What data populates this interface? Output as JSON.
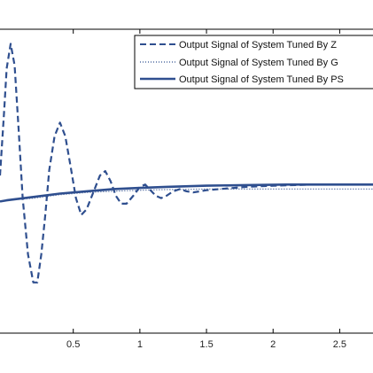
{
  "chart_data": {
    "type": "line",
    "xlim": [
      -0.05,
      2.75
    ],
    "ylim": [
      -1.2,
      1.5
    ],
    "grid": false,
    "legend_position": "top-right",
    "x_ticks": [
      0.5,
      1,
      1.5,
      2,
      2.5
    ],
    "x_tick_labels": [
      "0.5",
      "1",
      "1.5",
      "2",
      "2.5"
    ],
    "series": [
      {
        "name": "Output Signal of System Tuned By Z",
        "style": "dashed",
        "color": "#2f4f8f",
        "x": [
          -0.05,
          -0.02,
          0.0,
          0.03,
          0.06,
          0.09,
          0.12,
          0.16,
          0.2,
          0.23,
          0.26,
          0.29,
          0.32,
          0.36,
          0.4,
          0.44,
          0.48,
          0.52,
          0.56,
          0.6,
          0.65,
          0.7,
          0.74,
          0.78,
          0.82,
          0.86,
          0.9,
          0.95,
          1.0,
          1.04,
          1.08,
          1.12,
          1.16,
          1.2,
          1.25,
          1.3,
          1.35,
          1.4,
          1.5,
          1.6,
          1.8,
          2.0,
          2.3,
          2.6,
          2.75
        ],
        "values": [
          0.2,
          0.75,
          1.15,
          1.37,
          1.18,
          0.6,
          0.0,
          -0.5,
          -0.75,
          -0.75,
          -0.5,
          -0.15,
          0.25,
          0.55,
          0.67,
          0.55,
          0.28,
          0.0,
          -0.15,
          -0.1,
          0.05,
          0.2,
          0.24,
          0.15,
          0.02,
          -0.05,
          -0.05,
          0.02,
          0.1,
          0.12,
          0.07,
          0.02,
          0.0,
          0.02,
          0.06,
          0.08,
          0.06,
          0.05,
          0.07,
          0.08,
          0.1,
          0.11,
          0.12,
          0.12,
          0.12
        ]
      },
      {
        "name": "Output Signal of System Tuned By G",
        "style": "dotted",
        "color": "#2f4f8f",
        "x": [
          -0.05,
          0.0,
          0.2,
          0.4,
          0.6,
          0.8,
          1.0,
          1.2,
          1.5,
          1.8,
          2.1,
          2.4,
          2.75
        ],
        "values": [
          -0.03,
          -0.02,
          0.0,
          0.03,
          0.05,
          0.06,
          0.07,
          0.075,
          0.08,
          0.08,
          0.08,
          0.08,
          0.08
        ]
      },
      {
        "name": "Output Signal of System Tuned By PS",
        "style": "solid",
        "color": "#2f4f8f",
        "x": [
          -0.05,
          0.0,
          0.2,
          0.4,
          0.6,
          0.8,
          1.0,
          1.2,
          1.5,
          1.8,
          2.1,
          2.4,
          2.75
        ],
        "values": [
          -0.03,
          -0.02,
          0.01,
          0.04,
          0.06,
          0.08,
          0.09,
          0.1,
          0.11,
          0.115,
          0.12,
          0.12,
          0.12
        ]
      }
    ]
  },
  "legend": {
    "labels": [
      "Output Signal of System Tuned By Z",
      "Output Signal of System Tuned By G",
      "Output Signal of System Tuned By PS"
    ]
  }
}
